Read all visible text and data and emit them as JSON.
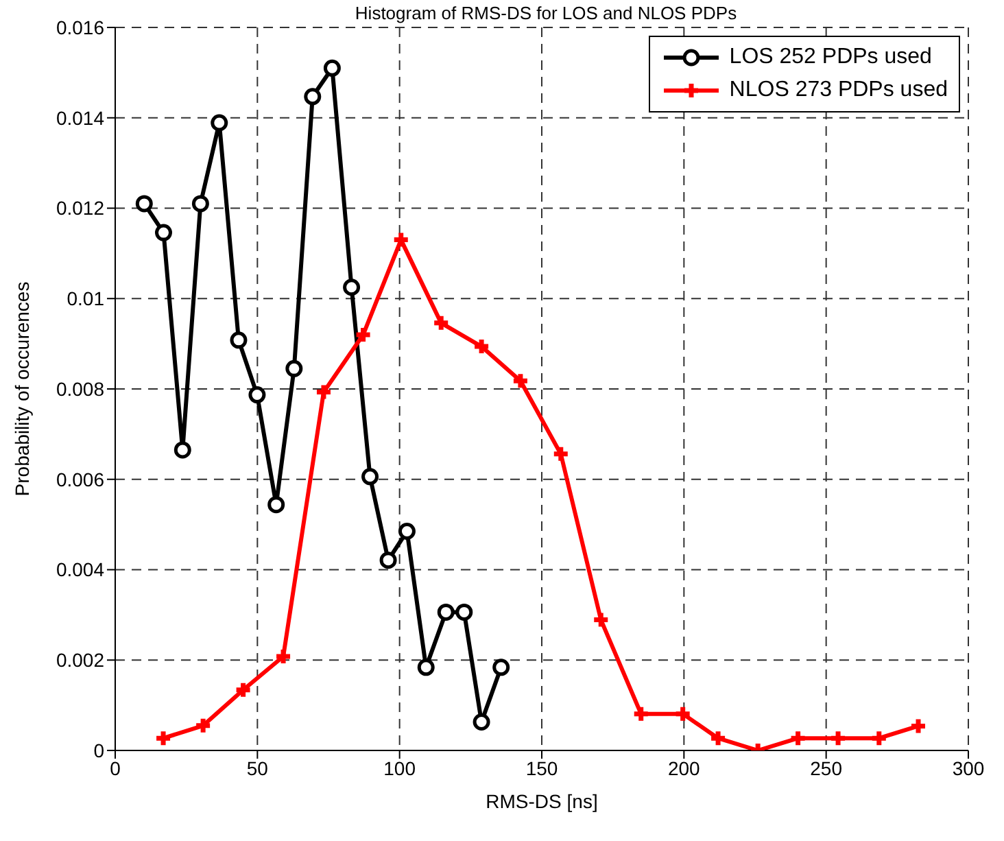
{
  "chart_data": {
    "type": "line",
    "title": "Histogram of RMS-DS for LOS and NLOS PDPs",
    "xlabel": "RMS-DS [ns]",
    "ylabel": "Probability of occurences",
    "xlim": [
      0,
      300
    ],
    "xticks": [
      0,
      50,
      100,
      150,
      200,
      250,
      300
    ],
    "ylim": [
      0,
      0.016
    ],
    "yticks": [
      0,
      0.002,
      0.004,
      0.006,
      0.008,
      0.01,
      0.012,
      0.014,
      0.016
    ],
    "grid": true,
    "legend": "top right",
    "line_style": "solid",
    "series": [
      {
        "name": "LOS 252 PDPs used",
        "color": "#000000",
        "marker": "circle",
        "x": [
          10.2,
          17.0,
          23.7,
          30.0,
          36.6,
          43.4,
          49.9,
          56.6,
          62.9,
          69.4,
          76.3,
          83.1,
          89.6,
          96.0,
          102.6,
          109.3,
          116.3,
          122.7,
          128.8,
          135.7
        ],
        "values": [
          0.0121,
          0.01146,
          0.00665,
          0.0121,
          0.01389,
          0.00908,
          0.00787,
          0.00544,
          0.00845,
          0.01447,
          0.0151,
          0.01025,
          0.00606,
          0.00421,
          0.00485,
          0.00184,
          0.00306,
          0.00306,
          0.00063,
          0.00184
        ]
      },
      {
        "name": "NLOS 273 PDPs used",
        "color": "#ff0000",
        "marker": "cross",
        "x": [
          16.9,
          30.9,
          45.0,
          59.1,
          73.3,
          87.2,
          100.5,
          114.6,
          128.8,
          142.5,
          156.7,
          170.8,
          184.9,
          199.6,
          212.0,
          226.0,
          240.1,
          254.2,
          268.6,
          282.4
        ],
        "values": [
          0.00027,
          0.00055,
          0.00134,
          0.00208,
          0.00793,
          0.0092,
          0.0113,
          0.00946,
          0.00894,
          0.00818,
          0.00656,
          0.00289,
          0.00081,
          0.00081,
          0.00027,
          0,
          0.00027,
          0.00027,
          0.00027,
          0.00054
        ]
      }
    ]
  }
}
